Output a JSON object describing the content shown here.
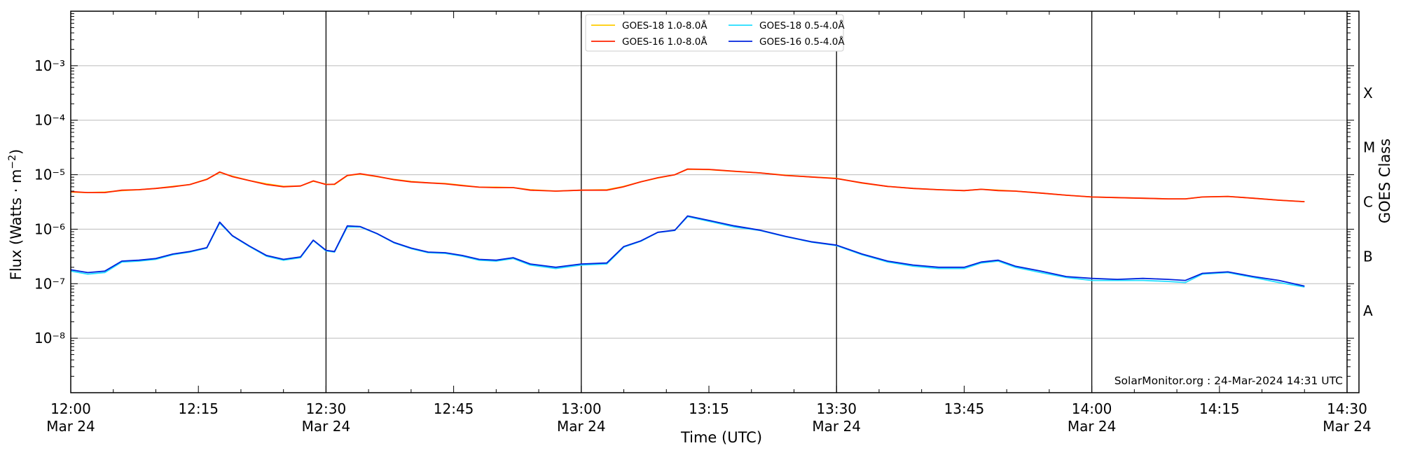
{
  "chart_data": {
    "type": "line",
    "xlabel": "Time (UTC)",
    "ylabel": "Flux (Watts · m⁻²)",
    "right_label": "GOES Class",
    "credit": "SolarMonitor.org : 24-Mar-2024 14:31 UTC",
    "y_scale": "log",
    "ylim": [
      1e-09,
      0.01
    ],
    "xlim": [
      "2024-03-24 12:00",
      "2024-03-24 14:30"
    ],
    "x_ticks": [
      {
        "time": "2024-03-24 12:00",
        "line1": "12:00",
        "line2": "Mar 24"
      },
      {
        "time": "2024-03-24 12:15",
        "line1": "12:15",
        "line2": ""
      },
      {
        "time": "2024-03-24 12:30",
        "line1": "12:30",
        "line2": "Mar 24"
      },
      {
        "time": "2024-03-24 12:45",
        "line1": "12:45",
        "line2": ""
      },
      {
        "time": "2024-03-24 13:00",
        "line1": "13:00",
        "line2": "Mar 24"
      },
      {
        "time": "2024-03-24 13:15",
        "line1": "13:15",
        "line2": ""
      },
      {
        "time": "2024-03-24 13:30",
        "line1": "13:30",
        "line2": "Mar 24"
      },
      {
        "time": "2024-03-24 13:45",
        "line1": "13:45",
        "line2": ""
      },
      {
        "time": "2024-03-24 14:00",
        "line1": "14:00",
        "line2": "Mar 24"
      },
      {
        "time": "2024-03-24 14:15",
        "line1": "14:15",
        "line2": ""
      },
      {
        "time": "2024-03-24 14:30",
        "line1": "14:30",
        "line2": "Mar 24"
      }
    ],
    "vertical_markers": [
      "2024-03-24 12:30",
      "2024-03-24 13:00",
      "2024-03-24 13:30",
      "2024-03-24 14:00"
    ],
    "y_ticks": [
      {
        "value": 1e-08,
        "label": "10⁻⁸"
      },
      {
        "value": 1e-07,
        "label": "10⁻⁷"
      },
      {
        "value": 1e-06,
        "label": "10⁻⁶"
      },
      {
        "value": 1e-05,
        "label": "10⁻⁵"
      },
      {
        "value": 0.0001,
        "label": "10⁻⁴"
      },
      {
        "value": 0.001,
        "label": "10⁻³"
      }
    ],
    "grid": "horizontal",
    "legend_position": "top-center",
    "goes_classes": [
      {
        "label": "A",
        "value": 3.16e-08
      },
      {
        "label": "B",
        "value": 3.16e-07
      },
      {
        "label": "C",
        "value": 3.16e-06
      },
      {
        "label": "M",
        "value": 3.16e-05
      },
      {
        "label": "X",
        "value": 0.000316
      }
    ],
    "series": [
      {
        "name": "GOES-18 1.0-8.0Å",
        "color": "#ffcc00",
        "x": [
          "2024-03-24 12:00",
          "2024-03-24 12:02",
          "2024-03-24 12:04",
          "2024-03-24 12:06",
          "2024-03-24 12:08",
          "2024-03-24 12:10",
          "2024-03-24 12:12",
          "2024-03-24 12:14",
          "2024-03-24 12:16",
          "2024-03-24 12:17.5",
          "2024-03-24 12:19",
          "2024-03-24 12:21",
          "2024-03-24 12:23",
          "2024-03-24 12:25",
          "2024-03-24 12:27",
          "2024-03-24 12:28.5",
          "2024-03-24 12:30",
          "2024-03-24 12:31",
          "2024-03-24 12:32.5",
          "2024-03-24 12:34",
          "2024-03-24 12:36",
          "2024-03-24 12:38",
          "2024-03-24 12:40",
          "2024-03-24 12:42",
          "2024-03-24 12:44",
          "2024-03-24 12:46",
          "2024-03-24 12:48",
          "2024-03-24 12:50",
          "2024-03-24 12:52",
          "2024-03-24 12:54",
          "2024-03-24 12:57",
          "2024-03-24 13:00",
          "2024-03-24 13:03",
          "2024-03-24 13:05",
          "2024-03-24 13:07",
          "2024-03-24 13:09",
          "2024-03-24 13:11",
          "2024-03-24 13:12.5",
          "2024-03-24 13:15",
          "2024-03-24 13:18",
          "2024-03-24 13:21",
          "2024-03-24 13:24",
          "2024-03-24 13:27",
          "2024-03-24 13:30",
          "2024-03-24 13:33",
          "2024-03-24 13:36",
          "2024-03-24 13:39",
          "2024-03-24 13:42",
          "2024-03-24 13:45",
          "2024-03-24 13:47",
          "2024-03-24 13:49",
          "2024-03-24 13:51",
          "2024-03-24 13:54",
          "2024-03-24 13:57",
          "2024-03-24 14:00",
          "2024-03-24 14:03",
          "2024-03-24 14:06",
          "2024-03-24 14:09",
          "2024-03-24 14:11",
          "2024-03-24 14:13",
          "2024-03-24 14:16",
          "2024-03-24 14:19",
          "2024-03-24 14:22",
          "2024-03-24 14:25"
        ],
        "y": [
          4.8e-06,
          4.7e-06,
          4.8e-06,
          5.1e-06,
          5.3e-06,
          5.6e-06,
          6.1e-06,
          6.6e-06,
          8.3e-06,
          1.1e-05,
          9.4e-06,
          7.8e-06,
          6.8e-06,
          6.1e-06,
          6.2e-06,
          7.6e-06,
          6.7e-06,
          6.6e-06,
          9.6e-06,
          1.03e-05,
          9.2e-06,
          8.2e-06,
          7.5e-06,
          7.1e-06,
          6.9e-06,
          6.4e-06,
          5.9e-06,
          5.9e-06,
          5.8e-06,
          5.3e-06,
          5e-06,
          5.2e-06,
          5.3e-06,
          6.1e-06,
          7.4e-06,
          8.7e-06,
          1e-05,
          1.26e-05,
          1.24e-05,
          1.15e-05,
          1.08e-05,
          9.8e-06,
          9.1e-06,
          8.6e-06,
          7e-06,
          6.1e-06,
          5.6e-06,
          5.3e-06,
          5.1e-06,
          5.4e-06,
          5.2e-06,
          5e-06,
          4.6e-06,
          4.2e-06,
          3.9e-06,
          3.8e-06,
          3.7e-06,
          3.6e-06,
          3.6e-06,
          3.9e-06,
          4e-06,
          3.7e-06,
          3.4e-06,
          3.2e-06
        ]
      },
      {
        "name": "GOES-16 1.0-8.0Å",
        "color": "#ff2200",
        "x": [
          "2024-03-24 12:00",
          "2024-03-24 12:02",
          "2024-03-24 12:04",
          "2024-03-24 12:06",
          "2024-03-24 12:08",
          "2024-03-24 12:10",
          "2024-03-24 12:12",
          "2024-03-24 12:14",
          "2024-03-24 12:16",
          "2024-03-24 12:17.5",
          "2024-03-24 12:19",
          "2024-03-24 12:21",
          "2024-03-24 12:23",
          "2024-03-24 12:25",
          "2024-03-24 12:27",
          "2024-03-24 12:28.5",
          "2024-03-24 12:30",
          "2024-03-24 12:31",
          "2024-03-24 12:32.5",
          "2024-03-24 12:34",
          "2024-03-24 12:36",
          "2024-03-24 12:38",
          "2024-03-24 12:40",
          "2024-03-24 12:42",
          "2024-03-24 12:44",
          "2024-03-24 12:46",
          "2024-03-24 12:48",
          "2024-03-24 12:50",
          "2024-03-24 12:52",
          "2024-03-24 12:54",
          "2024-03-24 12:57",
          "2024-03-24 13:00",
          "2024-03-24 13:03",
          "2024-03-24 13:05",
          "2024-03-24 13:07",
          "2024-03-24 13:09",
          "2024-03-24 13:11",
          "2024-03-24 13:12.5",
          "2024-03-24 13:15",
          "2024-03-24 13:18",
          "2024-03-24 13:21",
          "2024-03-24 13:24",
          "2024-03-24 13:27",
          "2024-03-24 13:30",
          "2024-03-24 13:33",
          "2024-03-24 13:36",
          "2024-03-24 13:39",
          "2024-03-24 13:42",
          "2024-03-24 13:45",
          "2024-03-24 13:47",
          "2024-03-24 13:49",
          "2024-03-24 13:51",
          "2024-03-24 13:54",
          "2024-03-24 13:57",
          "2024-03-24 14:00",
          "2024-03-24 14:03",
          "2024-03-24 14:06",
          "2024-03-24 14:09",
          "2024-03-24 14:11",
          "2024-03-24 14:13",
          "2024-03-24 14:16",
          "2024-03-24 14:19",
          "2024-03-24 14:22",
          "2024-03-24 14:25"
        ],
        "y": [
          4.9e-06,
          4.7e-06,
          4.7e-06,
          5.2e-06,
          5.3e-06,
          5.6e-06,
          6e-06,
          6.6e-06,
          8.2e-06,
          1.12e-05,
          9.2e-06,
          7.8e-06,
          6.6e-06,
          6e-06,
          6.2e-06,
          7.7e-06,
          6.6e-06,
          6.7e-06,
          9.7e-06,
          1.04e-05,
          9.3e-06,
          8.1e-06,
          7.4e-06,
          7.1e-06,
          6.8e-06,
          6.3e-06,
          5.9e-06,
          5.8e-06,
          5.8e-06,
          5.2e-06,
          5e-06,
          5.2e-06,
          5.2e-06,
          6e-06,
          7.4e-06,
          8.8e-06,
          1e-05,
          1.27e-05,
          1.25e-05,
          1.16e-05,
          1.08e-05,
          9.7e-06,
          9.1e-06,
          8.5e-06,
          7.1e-06,
          6.1e-06,
          5.6e-06,
          5.3e-06,
          5.1e-06,
          5.4e-06,
          5.1e-06,
          5e-06,
          4.6e-06,
          4.2e-06,
          3.9e-06,
          3.8e-06,
          3.7e-06,
          3.6e-06,
          3.6e-06,
          3.9e-06,
          4e-06,
          3.7e-06,
          3.4e-06,
          3.2e-06
        ]
      },
      {
        "name": "GOES-18 0.5-4.0Å",
        "color": "#22ddff",
        "x": [
          "2024-03-24 12:00",
          "2024-03-24 12:02",
          "2024-03-24 12:04",
          "2024-03-24 12:06",
          "2024-03-24 12:08",
          "2024-03-24 12:10",
          "2024-03-24 12:12",
          "2024-03-24 12:14",
          "2024-03-24 12:16",
          "2024-03-24 12:17.5",
          "2024-03-24 12:19",
          "2024-03-24 12:21",
          "2024-03-24 12:23",
          "2024-03-24 12:25",
          "2024-03-24 12:27",
          "2024-03-24 12:28.5",
          "2024-03-24 12:30",
          "2024-03-24 12:31",
          "2024-03-24 12:32.5",
          "2024-03-24 12:34",
          "2024-03-24 12:36",
          "2024-03-24 12:38",
          "2024-03-24 12:40",
          "2024-03-24 12:42",
          "2024-03-24 12:44",
          "2024-03-24 12:46",
          "2024-03-24 12:48",
          "2024-03-24 12:50",
          "2024-03-24 12:52",
          "2024-03-24 12:54",
          "2024-03-24 12:57",
          "2024-03-24 13:00",
          "2024-03-24 13:03",
          "2024-03-24 13:05",
          "2024-03-24 13:07",
          "2024-03-24 13:09",
          "2024-03-24 13:11",
          "2024-03-24 13:12.5",
          "2024-03-24 13:15",
          "2024-03-24 13:18",
          "2024-03-24 13:21",
          "2024-03-24 13:24",
          "2024-03-24 13:27",
          "2024-03-24 13:30",
          "2024-03-24 13:33",
          "2024-03-24 13:36",
          "2024-03-24 13:39",
          "2024-03-24 13:42",
          "2024-03-24 13:45",
          "2024-03-24 13:47",
          "2024-03-24 13:49",
          "2024-03-24 13:51",
          "2024-03-24 13:54",
          "2024-03-24 13:57",
          "2024-03-24 14:00",
          "2024-03-24 14:03",
          "2024-03-24 14:06",
          "2024-03-24 14:09",
          "2024-03-24 14:11",
          "2024-03-24 14:13",
          "2024-03-24 14:16",
          "2024-03-24 14:19",
          "2024-03-24 14:22",
          "2024-03-24 14:25"
        ],
        "y": [
          1.7e-07,
          1.5e-07,
          1.6e-07,
          2.5e-07,
          2.6e-07,
          2.8e-07,
          3.4e-07,
          3.8e-07,
          4.5e-07,
          1.3e-06,
          7.5e-07,
          4.8e-07,
          3.2e-07,
          2.7e-07,
          3e-07,
          6.2e-07,
          4e-07,
          3.8e-07,
          1.1e-06,
          1.1e-06,
          8.2e-07,
          5.6e-07,
          4.4e-07,
          3.7e-07,
          3.6e-07,
          3.2e-07,
          2.7e-07,
          2.6e-07,
          2.9e-07,
          2.2e-07,
          1.9e-07,
          2.2e-07,
          2.3e-07,
          4.7e-07,
          6e-07,
          8.7e-07,
          9.5e-07,
          1.7e-06,
          1.4e-06,
          1.1e-06,
          9.5e-07,
          7.3e-07,
          5.8e-07,
          5e-07,
          3.4e-07,
          2.5e-07,
          2.1e-07,
          1.9e-07,
          1.9e-07,
          2.4e-07,
          2.6e-07,
          2e-07,
          1.6e-07,
          1.3e-07,
          1.15e-07,
          1.15e-07,
          1.15e-07,
          1.1e-07,
          1.05e-07,
          1.5e-07,
          1.6e-07,
          1.3e-07,
          1.05e-07,
          8.7e-08
        ]
      },
      {
        "name": "GOES-16 0.5-4.0Å",
        "color": "#0022dd",
        "x": [
          "2024-03-24 12:00",
          "2024-03-24 12:02",
          "2024-03-24 12:04",
          "2024-03-24 12:06",
          "2024-03-24 12:08",
          "2024-03-24 12:10",
          "2024-03-24 12:12",
          "2024-03-24 12:14",
          "2024-03-24 12:16",
          "2024-03-24 12:17.5",
          "2024-03-24 12:19",
          "2024-03-24 12:21",
          "2024-03-24 12:23",
          "2024-03-24 12:25",
          "2024-03-24 12:27",
          "2024-03-24 12:28.5",
          "2024-03-24 12:30",
          "2024-03-24 12:31",
          "2024-03-24 12:32.5",
          "2024-03-24 12:34",
          "2024-03-24 12:36",
          "2024-03-24 12:38",
          "2024-03-24 12:40",
          "2024-03-24 12:42",
          "2024-03-24 12:44",
          "2024-03-24 12:46",
          "2024-03-24 12:48",
          "2024-03-24 12:50",
          "2024-03-24 12:52",
          "2024-03-24 12:54",
          "2024-03-24 12:57",
          "2024-03-24 13:00",
          "2024-03-24 13:03",
          "2024-03-24 13:05",
          "2024-03-24 13:07",
          "2024-03-24 13:09",
          "2024-03-24 13:11",
          "2024-03-24 13:12.5",
          "2024-03-24 13:15",
          "2024-03-24 13:18",
          "2024-03-24 13:21",
          "2024-03-24 13:24",
          "2024-03-24 13:27",
          "2024-03-24 13:30",
          "2024-03-24 13:33",
          "2024-03-24 13:36",
          "2024-03-24 13:39",
          "2024-03-24 13:42",
          "2024-03-24 13:45",
          "2024-03-24 13:47",
          "2024-03-24 13:49",
          "2024-03-24 13:51",
          "2024-03-24 13:54",
          "2024-03-24 13:57",
          "2024-03-24 14:00",
          "2024-03-24 14:03",
          "2024-03-24 14:06",
          "2024-03-24 14:09",
          "2024-03-24 14:11",
          "2024-03-24 14:13",
          "2024-03-24 14:16",
          "2024-03-24 14:19",
          "2024-03-24 14:22",
          "2024-03-24 14:25"
        ],
        "y": [
          1.8e-07,
          1.6e-07,
          1.7e-07,
          2.6e-07,
          2.7e-07,
          2.9e-07,
          3.5e-07,
          3.9e-07,
          4.6e-07,
          1.35e-06,
          7.6e-07,
          4.9e-07,
          3.3e-07,
          2.8e-07,
          3.1e-07,
          6.3e-07,
          4.1e-07,
          3.9e-07,
          1.15e-06,
          1.12e-06,
          8.3e-07,
          5.7e-07,
          4.5e-07,
          3.8e-07,
          3.7e-07,
          3.3e-07,
          2.8e-07,
          2.7e-07,
          3e-07,
          2.3e-07,
          2e-07,
          2.3e-07,
          2.4e-07,
          4.8e-07,
          6.1e-07,
          8.8e-07,
          9.6e-07,
          1.75e-06,
          1.45e-06,
          1.15e-06,
          9.6e-07,
          7.4e-07,
          5.9e-07,
          5.1e-07,
          3.5e-07,
          2.6e-07,
          2.2e-07,
          2e-07,
          2e-07,
          2.5e-07,
          2.7e-07,
          2.1e-07,
          1.7e-07,
          1.35e-07,
          1.25e-07,
          1.2e-07,
          1.25e-07,
          1.2e-07,
          1.15e-07,
          1.55e-07,
          1.65e-07,
          1.35e-07,
          1.15e-07,
          9e-08
        ]
      }
    ]
  }
}
